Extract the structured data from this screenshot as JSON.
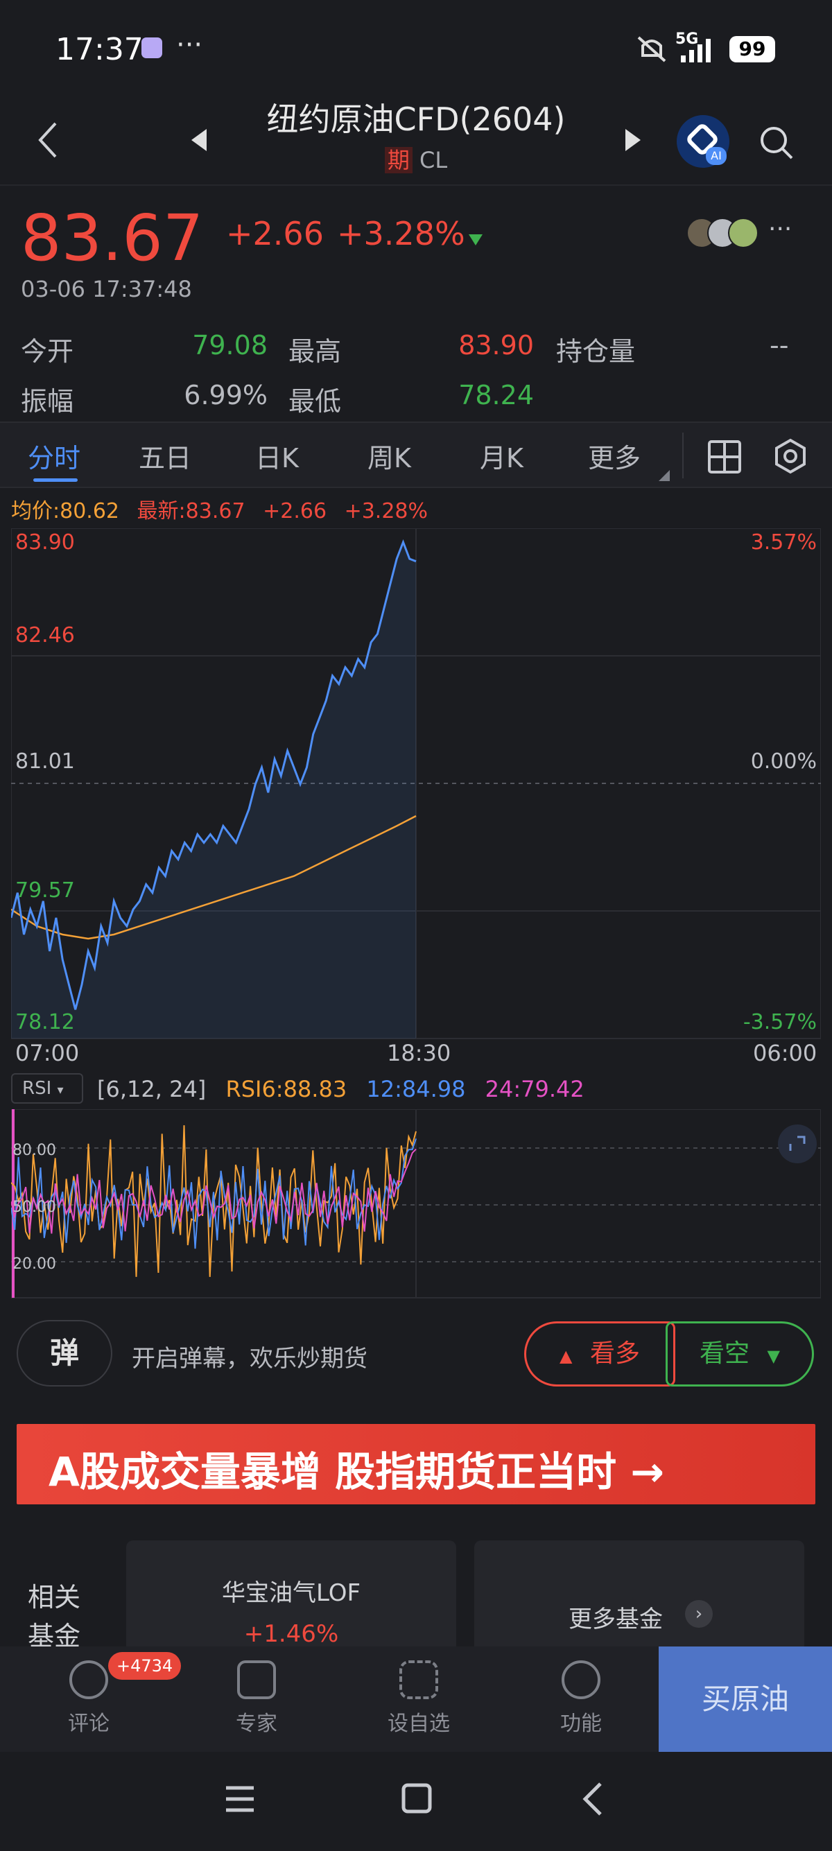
{
  "status_bar": {
    "time": "17:37",
    "more": "···",
    "network": "5G",
    "battery": "99"
  },
  "header": {
    "title": "纽约原油CFD(2604)",
    "badge": "期",
    "code": "CL",
    "ai_badge": "AI"
  },
  "quote": {
    "price": "83.67",
    "change": "+2.66",
    "change_pct": "+3.28%",
    "timestamp": "03-06 17:37:48",
    "more": "···",
    "stats": [
      {
        "label": "今开",
        "value": "79.08"
      },
      {
        "label": "最高",
        "value": "83.90"
      },
      {
        "label": "持仓量",
        "value": "--"
      },
      {
        "label": "振幅",
        "value": "6.99%"
      },
      {
        "label": "最低",
        "value": "78.24"
      }
    ]
  },
  "tabs": [
    "分时",
    "五日",
    "日K",
    "周K",
    "月K",
    "更多"
  ],
  "chart_info": {
    "avg": "均价:80.62",
    "latest": "最新:83.67",
    "change": "+2.66",
    "pct": "+3.28%"
  },
  "chart_data": {
    "type": "line",
    "y_labels": [
      "83.90",
      "82.46",
      "81.01",
      "79.57",
      "78.12"
    ],
    "pct_labels": [
      "3.57%",
      "0.00%",
      "-3.57%"
    ],
    "x_labels": [
      "07:00",
      "18:30",
      "06:00"
    ],
    "ylim": [
      78.12,
      83.9
    ],
    "series": [
      {
        "name": "price",
        "color": "#4f8ff7",
        "x": [
          0,
          5,
          10,
          15,
          20,
          25,
          30,
          35,
          40,
          45,
          50,
          55,
          60,
          65,
          70,
          75,
          80,
          85,
          90,
          95,
          100,
          105,
          110,
          115,
          120,
          125,
          130,
          135,
          140,
          145,
          150,
          155,
          160,
          165,
          170,
          175,
          180,
          185,
          190,
          195,
          200,
          205,
          210,
          215,
          220,
          225,
          230,
          235,
          240,
          245,
          250,
          255,
          260,
          265,
          270,
          275,
          280,
          285,
          290,
          295,
          300,
          305,
          310,
          315
        ],
        "values": [
          79.4,
          79.7,
          79.2,
          79.5,
          79.3,
          79.6,
          79.0,
          79.4,
          78.9,
          78.6,
          78.3,
          78.6,
          79.0,
          78.8,
          79.3,
          79.1,
          79.6,
          79.4,
          79.3,
          79.5,
          79.6,
          79.8,
          79.7,
          80.0,
          79.9,
          80.2,
          80.1,
          80.3,
          80.2,
          80.4,
          80.3,
          80.4,
          80.3,
          80.5,
          80.4,
          80.3,
          80.5,
          80.7,
          81.0,
          81.2,
          80.9,
          81.3,
          81.1,
          81.4,
          81.2,
          81.0,
          81.2,
          81.6,
          81.8,
          82.0,
          82.3,
          82.2,
          82.4,
          82.3,
          82.5,
          82.4,
          82.7,
          82.8,
          83.1,
          83.4,
          83.7,
          83.9,
          83.7,
          83.67
        ]
      },
      {
        "name": "均价",
        "color": "#f4a137",
        "x": [
          0,
          20,
          40,
          60,
          80,
          100,
          120,
          140,
          160,
          180,
          200,
          220,
          240,
          260,
          280,
          300,
          315
        ],
        "values": [
          79.5,
          79.3,
          79.2,
          79.15,
          79.2,
          79.3,
          79.4,
          79.5,
          79.6,
          79.7,
          79.8,
          79.9,
          80.05,
          80.2,
          80.35,
          80.5,
          80.62
        ]
      }
    ]
  },
  "rsi": {
    "label": "RSI",
    "params": "[6,12, 24]",
    "rsi6": "RSI6:88.83",
    "rsi12": "12:84.98",
    "rsi24": "24:79.42",
    "levels": [
      "80.00",
      "50.00",
      "20.00"
    ]
  },
  "danmu": {
    "icon_text": "弹",
    "text": "开启弹幕，欢乐炒期货",
    "bull": "看多",
    "bear": "看空"
  },
  "banner": {
    "text": "A股成交量暴增 股指期货正当时 →"
  },
  "funds": {
    "label": "相关基金",
    "fund_name": "华宝油气LOF",
    "fund_pct": "+1.46%",
    "more": "更多基金"
  },
  "bottom_nav": {
    "comments": "评论",
    "comments_badge": "+4734",
    "experts": "专家",
    "watchlist": "设自选",
    "functions": "功能",
    "buy": "买原油"
  },
  "colors": {
    "up": "#f04a3e",
    "down": "#3fb34f",
    "accent": "#4f8ff7",
    "buy_bg": "#4f74c6"
  }
}
